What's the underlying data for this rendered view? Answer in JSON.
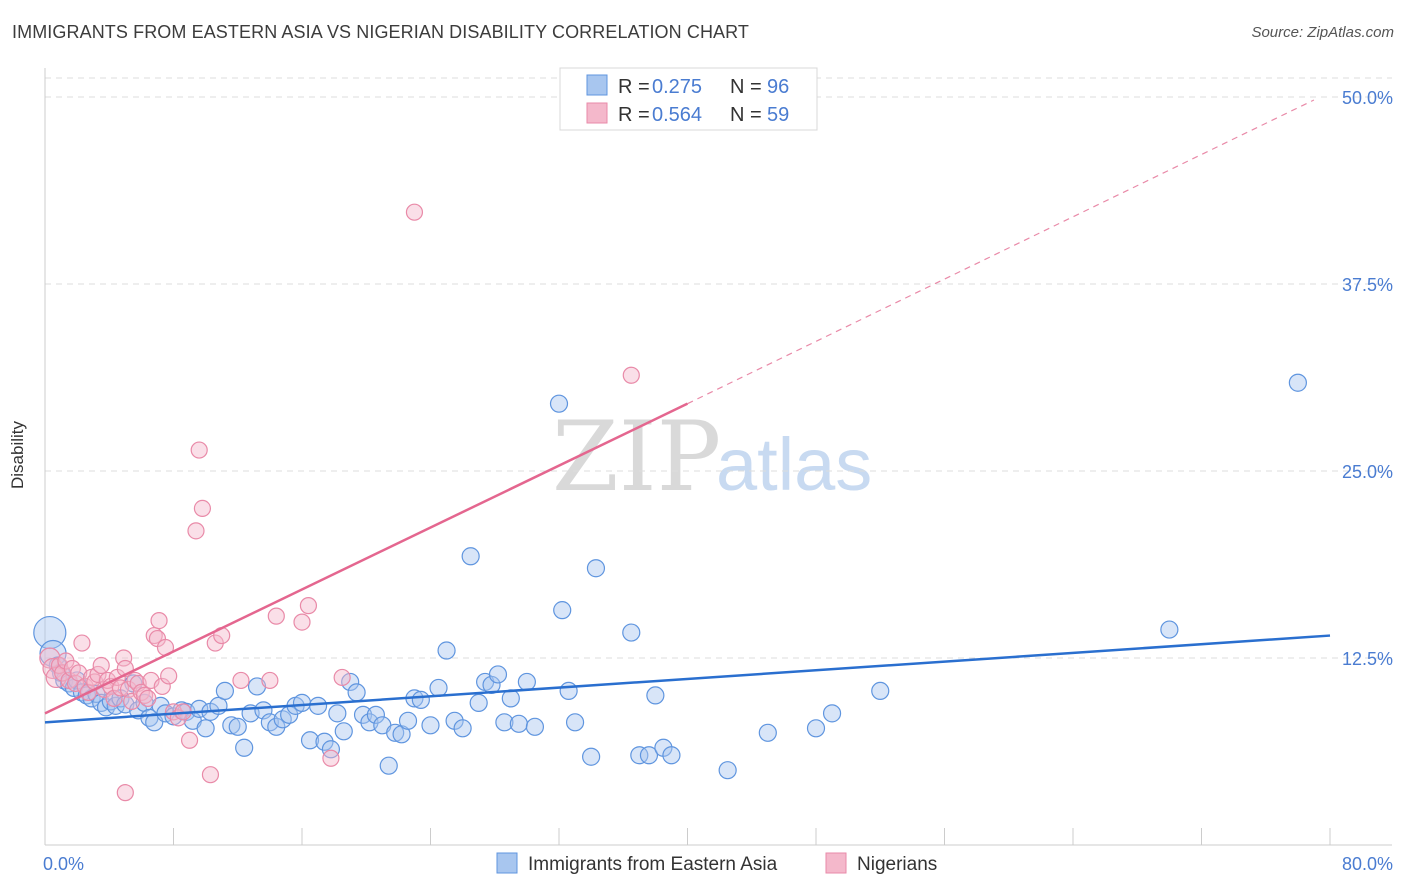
{
  "title": "IMMIGRANTS FROM EASTERN ASIA VS NIGERIAN DISABILITY CORRELATION CHART",
  "source": "Source: ZipAtlas.com",
  "watermark": {
    "zip": "ZIP",
    "atlas": "atlas"
  },
  "legend_top": [
    {
      "r_label": "R =",
      "r_value": "0.275",
      "n_label": "N =",
      "n_value": "96"
    },
    {
      "r_label": "R =",
      "r_value": "0.564",
      "n_label": "N =",
      "n_value": "59"
    }
  ],
  "legend_bottom": [
    "Immigrants from Eastern Asia",
    "Nigerians"
  ],
  "colors": {
    "blue_fill": "#a8c6ef",
    "blue_stroke": "#5f95df",
    "blue_line": "#2a6fcf",
    "pink_fill": "#f4b8cb",
    "pink_stroke": "#e98aa8",
    "pink_line": "#e4668f",
    "axis_text": "#4a7cd1",
    "grid": "#dddddd"
  },
  "chart_data": {
    "type": "scatter",
    "xlabel": "",
    "ylabel": "Disability",
    "xlim": [
      0,
      80
    ],
    "ylim": [
      0,
      50
    ],
    "x_tick_labels": [
      "0.0%",
      "80.0%"
    ],
    "y_ticks": [
      12.5,
      25.0,
      37.5,
      50.0
    ],
    "y_tick_labels": [
      "12.5%",
      "25.0%",
      "37.5%",
      "50.0%"
    ],
    "grid": "horizontal dashed",
    "legend": "top-center",
    "series": [
      {
        "name": "Immigrants from Eastern Asia",
        "R": 0.275,
        "N": 96,
        "trend": {
          "x": [
            0,
            80
          ],
          "y": [
            8.2,
            14.0
          ],
          "style": "solid"
        },
        "points": [
          [
            0.3,
            14.2
          ],
          [
            0.5,
            12.8
          ],
          [
            0.8,
            12.0
          ],
          [
            1.0,
            11.5
          ],
          [
            1.2,
            11.0
          ],
          [
            1.5,
            10.8
          ],
          [
            1.8,
            10.5
          ],
          [
            2.0,
            11.0
          ],
          [
            2.3,
            10.2
          ],
          [
            2.6,
            10.0
          ],
          [
            2.9,
            9.8
          ],
          [
            3.2,
            10.1
          ],
          [
            3.5,
            9.5
          ],
          [
            3.8,
            9.2
          ],
          [
            4.1,
            9.6
          ],
          [
            4.4,
            9.3
          ],
          [
            4.7,
            9.8
          ],
          [
            5.0,
            9.4
          ],
          [
            5.5,
            10.8
          ],
          [
            5.8,
            9.0
          ],
          [
            6.2,
            9.5
          ],
          [
            6.5,
            8.5
          ],
          [
            6.8,
            8.2
          ],
          [
            7.2,
            9.3
          ],
          [
            7.5,
            8.8
          ],
          [
            8.0,
            8.6
          ],
          [
            8.5,
            9.0
          ],
          [
            8.8,
            8.9
          ],
          [
            9.2,
            8.3
          ],
          [
            9.6,
            9.1
          ],
          [
            10.0,
            7.8
          ],
          [
            10.3,
            8.9
          ],
          [
            10.8,
            9.3
          ],
          [
            11.2,
            10.3
          ],
          [
            11.6,
            8.0
          ],
          [
            12.0,
            7.9
          ],
          [
            12.4,
            6.5
          ],
          [
            12.8,
            8.8
          ],
          [
            13.2,
            10.6
          ],
          [
            13.6,
            9.0
          ],
          [
            14.0,
            8.2
          ],
          [
            14.4,
            7.9
          ],
          [
            14.8,
            8.4
          ],
          [
            15.2,
            8.7
          ],
          [
            15.6,
            9.3
          ],
          [
            16.0,
            9.5
          ],
          [
            16.5,
            7.0
          ],
          [
            17.0,
            9.3
          ],
          [
            17.4,
            6.9
          ],
          [
            17.8,
            6.4
          ],
          [
            18.2,
            8.8
          ],
          [
            18.6,
            7.6
          ],
          [
            19.0,
            10.9
          ],
          [
            19.4,
            10.2
          ],
          [
            19.8,
            8.7
          ],
          [
            20.2,
            8.2
          ],
          [
            20.6,
            8.7
          ],
          [
            21.0,
            8.0
          ],
          [
            21.4,
            5.3
          ],
          [
            21.8,
            7.5
          ],
          [
            22.2,
            7.4
          ],
          [
            22.6,
            8.3
          ],
          [
            23.0,
            9.8
          ],
          [
            23.4,
            9.7
          ],
          [
            24.0,
            8.0
          ],
          [
            24.5,
            10.5
          ],
          [
            25.0,
            13.0
          ],
          [
            25.5,
            8.3
          ],
          [
            26.0,
            7.8
          ],
          [
            26.5,
            19.3
          ],
          [
            27.0,
            9.5
          ],
          [
            27.4,
            10.9
          ],
          [
            27.8,
            10.7
          ],
          [
            28.2,
            11.4
          ],
          [
            28.6,
            8.2
          ],
          [
            29.0,
            9.8
          ],
          [
            29.5,
            8.1
          ],
          [
            30.0,
            10.9
          ],
          [
            30.5,
            7.9
          ],
          [
            32.0,
            29.5
          ],
          [
            32.2,
            15.7
          ],
          [
            32.6,
            10.3
          ],
          [
            33.0,
            8.2
          ],
          [
            34.0,
            5.9
          ],
          [
            34.3,
            18.5
          ],
          [
            36.5,
            14.2
          ],
          [
            37.0,
            6.0
          ],
          [
            37.6,
            6.0
          ],
          [
            38.0,
            10.0
          ],
          [
            38.5,
            6.5
          ],
          [
            39.0,
            6.0
          ],
          [
            42.5,
            5.0
          ],
          [
            45.0,
            7.5
          ],
          [
            48.0,
            7.8
          ],
          [
            49.0,
            8.8
          ],
          [
            52.0,
            10.3
          ],
          [
            70.0,
            14.4
          ],
          [
            78.0,
            30.9
          ]
        ]
      },
      {
        "name": "Nigerians",
        "R": 0.564,
        "N": 59,
        "trend": {
          "x": [
            0,
            40
          ],
          "y": [
            8.8,
            29.5
          ],
          "style": "solid"
        },
        "trend_ext": {
          "x": [
            40,
            79
          ],
          "y": [
            29.5,
            49.8
          ],
          "style": "dashed"
        },
        "points": [
          [
            0.3,
            12.5
          ],
          [
            0.5,
            11.8
          ],
          [
            0.7,
            11.2
          ],
          [
            0.9,
            12.0
          ],
          [
            1.1,
            11.5
          ],
          [
            1.3,
            12.3
          ],
          [
            1.5,
            11.0
          ],
          [
            1.7,
            11.8
          ],
          [
            1.9,
            10.8
          ],
          [
            2.1,
            11.5
          ],
          [
            2.3,
            13.5
          ],
          [
            2.5,
            10.6
          ],
          [
            2.7,
            10.2
          ],
          [
            2.9,
            11.2
          ],
          [
            3.1,
            10.9
          ],
          [
            3.3,
            11.4
          ],
          [
            3.5,
            12.0
          ],
          [
            3.7,
            10.4
          ],
          [
            3.9,
            11.0
          ],
          [
            4.1,
            10.6
          ],
          [
            4.3,
            9.8
          ],
          [
            4.5,
            11.2
          ],
          [
            4.7,
            10.5
          ],
          [
            4.9,
            12.5
          ],
          [
            5.0,
            11.8
          ],
          [
            5.0,
            3.5
          ],
          [
            5.2,
            10.4
          ],
          [
            5.4,
            9.6
          ],
          [
            5.6,
            11.0
          ],
          [
            5.8,
            10.8
          ],
          [
            6.0,
            10.2
          ],
          [
            6.2,
            10.0
          ],
          [
            6.4,
            9.8
          ],
          [
            6.6,
            11.0
          ],
          [
            6.8,
            14.0
          ],
          [
            7.0,
            13.8
          ],
          [
            7.1,
            15.0
          ],
          [
            7.3,
            10.6
          ],
          [
            7.5,
            13.2
          ],
          [
            7.7,
            11.3
          ],
          [
            8.0,
            8.9
          ],
          [
            8.3,
            8.5
          ],
          [
            8.6,
            8.9
          ],
          [
            9.0,
            7.0
          ],
          [
            9.4,
            21.0
          ],
          [
            9.6,
            26.4
          ],
          [
            9.8,
            22.5
          ],
          [
            10.3,
            4.7
          ],
          [
            10.6,
            13.5
          ],
          [
            11.0,
            14.0
          ],
          [
            12.2,
            11.0
          ],
          [
            14.0,
            11.0
          ],
          [
            14.4,
            15.3
          ],
          [
            16.0,
            14.9
          ],
          [
            16.4,
            16.0
          ],
          [
            17.8,
            5.8
          ],
          [
            18.5,
            11.2
          ],
          [
            23.0,
            42.3
          ],
          [
            36.5,
            31.4
          ]
        ]
      }
    ]
  }
}
